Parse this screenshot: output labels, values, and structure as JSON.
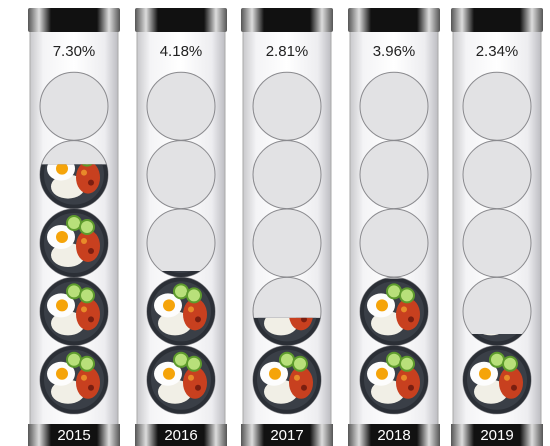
{
  "chart_data": {
    "type": "bar",
    "categories": [
      "2015",
      "2016",
      "2017",
      "2018",
      "2019"
    ],
    "values": [
      7.3,
      4.18,
      2.81,
      3.96,
      2.34
    ],
    "value_labels": [
      "7.30%",
      "4.18%",
      "2.81%",
      "3.96%",
      "2.34%"
    ],
    "ylim": [
      0,
      10
    ]
  }
}
